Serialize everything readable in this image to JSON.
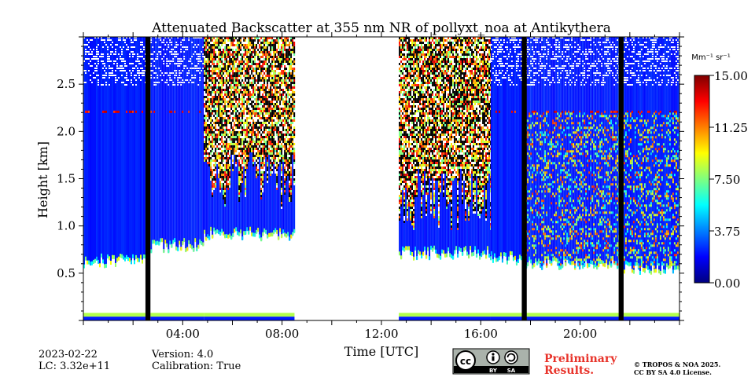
{
  "chart_data": {
    "type": "heatmap",
    "title": "Attenuated Backscatter at 355 nm NR of pollyxt_noa at Antikythera",
    "xlabel": "Time [UTC]",
    "ylabel": "Height [km]",
    "xlim": [
      0,
      24
    ],
    "ylim": [
      0,
      3.0
    ],
    "x_ticks": [
      4,
      8,
      12,
      16,
      20
    ],
    "x_tick_labels": [
      "04:00",
      "08:00",
      "12:00",
      "16:00",
      "20:00"
    ],
    "y_ticks": [
      0.5,
      1.0,
      1.5,
      2.0,
      2.5
    ],
    "y_tick_labels": [
      "0.5",
      "1.0",
      "1.5",
      "2.0",
      "2.5"
    ],
    "colorbar": {
      "unit": "Mm⁻¹ sr⁻¹",
      "range": [
        0,
        15
      ],
      "ticks": [
        0,
        3.75,
        7.5,
        11.25,
        15
      ],
      "tick_labels": [
        "0.00",
        "3.75",
        "7.50",
        "11.25",
        "15.00"
      ],
      "colormap": "jet"
    },
    "data_segments": [
      {
        "t0": 0.0,
        "t1": 2.5,
        "profile": "clean",
        "base": 0.62
      },
      {
        "t0": 2.7,
        "t1": 4.85,
        "profile": "clean",
        "base": 0.78
      },
      {
        "t0": 4.85,
        "t1": 8.5,
        "profile": "dust",
        "base": 0.9
      },
      {
        "t0": 12.7,
        "t1": 16.4,
        "profile": "dust",
        "base": 0.7
      },
      {
        "t0": 16.4,
        "t1": 17.7,
        "profile": "clean",
        "base": 0.65
      },
      {
        "t0": 17.8,
        "t1": 21.6,
        "profile": "mixed",
        "base": 0.6
      },
      {
        "t0": 21.75,
        "t1": 24.0,
        "profile": "mixed",
        "base": 0.55
      }
    ],
    "no_data_gaps": [
      [
        8.5,
        12.7
      ]
    ],
    "black_bars": [
      [
        2.5,
        2.7
      ],
      [
        17.65,
        17.85
      ],
      [
        21.55,
        21.75
      ]
    ],
    "surface_layer_km": [
      0.0,
      0.08
    ]
  },
  "footer": {
    "date": "2023-02-22",
    "lc": "LC: 3.32e+11",
    "version": "Version: 4.0",
    "calibration": "Calibration: True",
    "preliminary_line1": "Preliminary",
    "preliminary_line2": "Results.",
    "copyright_line1": "© TROPOS & NOA 2025.",
    "copyright_line2": "CC BY SA 4.0 License.",
    "license_badge": {
      "label_by": "BY",
      "label_sa": "SA",
      "icon": "cc-by-sa-icon"
    }
  },
  "colors": {
    "jet": [
      "#00007f",
      "#0000ff",
      "#007fff",
      "#00ffff",
      "#7fff7f",
      "#ffff00",
      "#ff7f00",
      "#ff0000",
      "#7f0000"
    ],
    "accent_prelim": "#e8332a"
  }
}
